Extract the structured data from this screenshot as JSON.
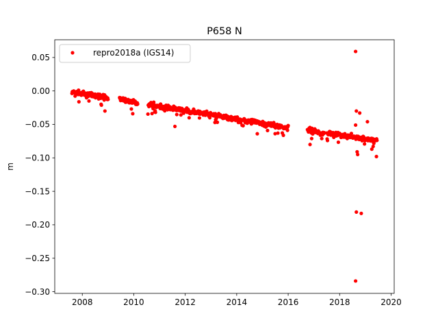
{
  "chart_data": {
    "type": "scatter",
    "title": "P658 N",
    "xlabel": "",
    "ylabel": "m",
    "xlim": [
      2006.93,
      2020.12
    ],
    "ylim": [
      -0.3025,
      0.0765
    ],
    "xticks": [
      2008,
      2010,
      2012,
      2014,
      2016,
      2018,
      2020
    ],
    "xtick_labels": [
      "2008",
      "2010",
      "2012",
      "2014",
      "2016",
      "2018",
      "2020"
    ],
    "yticks": [
      0.05,
      0.0,
      -0.05,
      -0.1,
      -0.15,
      -0.2,
      -0.25,
      -0.3
    ],
    "ytick_labels": [
      "0.05",
      "0.00",
      "−0.05",
      "−0.10",
      "−0.15",
      "−0.20",
      "−0.25",
      "−0.30"
    ],
    "grid": false,
    "legend": {
      "placement": "upper-left",
      "entries": [
        "repro2018a (IGS14)"
      ]
    },
    "series": [
      {
        "name": "repro2018a (IGS14)",
        "color": "#ff0000",
        "marker": "circle",
        "segments": [
          {
            "start": 2007.6,
            "end": 2009.0,
            "y_start": -0.002,
            "y_end": -0.01
          },
          {
            "start": 2009.45,
            "end": 2010.15,
            "y_start": -0.012,
            "y_end": -0.018
          },
          {
            "start": 2010.55,
            "end": 2016.0,
            "y_start": -0.02,
            "y_end": -0.055
          },
          {
            "start": 2016.75,
            "end": 2017.4,
            "y_start": -0.058,
            "y_end": -0.064
          },
          {
            "start": 2017.5,
            "end": 2017.95,
            "y_start": -0.062,
            "y_end": -0.066
          },
          {
            "start": 2018.0,
            "end": 2019.45,
            "y_start": -0.066,
            "y_end": -0.074
          }
        ],
        "outliers": [
          {
            "x": 2018.62,
            "y": 0.059
          },
          {
            "x": 2018.65,
            "y": -0.03
          },
          {
            "x": 2018.78,
            "y": -0.033
          },
          {
            "x": 2018.62,
            "y": -0.051
          },
          {
            "x": 2019.08,
            "y": -0.046
          },
          {
            "x": 2018.65,
            "y": -0.181
          },
          {
            "x": 2018.84,
            "y": -0.183
          },
          {
            "x": 2018.62,
            "y": -0.284
          },
          {
            "x": 2019.43,
            "y": -0.098
          },
          {
            "x": 2018.7,
            "y": -0.095
          },
          {
            "x": 2018.68,
            "y": -0.091
          },
          {
            "x": 2019.25,
            "y": -0.087
          },
          {
            "x": 2009.96,
            "y": -0.034
          },
          {
            "x": 2008.88,
            "y": -0.03
          },
          {
            "x": 2014.8,
            "y": -0.064
          },
          {
            "x": 2015.6,
            "y": -0.063
          },
          {
            "x": 2011.6,
            "y": -0.053
          },
          {
            "x": 2016.85,
            "y": -0.08
          }
        ]
      }
    ]
  }
}
